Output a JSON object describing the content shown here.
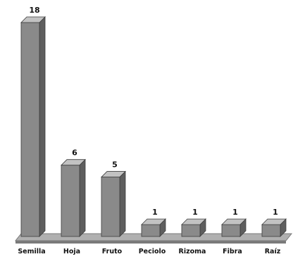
{
  "chart_data": {
    "type": "bar",
    "categories": [
      "Semilla",
      "Hoja",
      "Fruto",
      "Peciolo",
      "Rizoma",
      "Fibra",
      "Raíz"
    ],
    "values": [
      18,
      6,
      5,
      1,
      1,
      1,
      1
    ],
    "data_labels": [
      "18",
      "6",
      "5",
      "1",
      "1",
      "1",
      "1"
    ],
    "ylim": [
      0,
      18
    ],
    "grid": false,
    "legend": "none",
    "style": "3d",
    "colors": {
      "bar_front": "#8a8a8a",
      "bar_top": "#c2c2c2",
      "bar_side": "#5e5e5e",
      "floor": "#b0b0b0",
      "floor_edge": "#7a7a7a"
    }
  }
}
